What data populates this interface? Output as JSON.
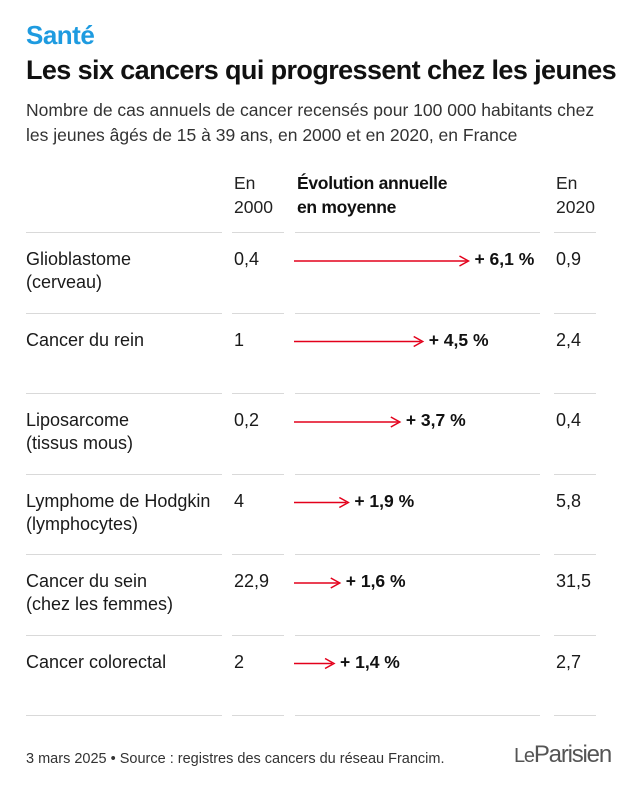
{
  "section": "Santé",
  "title": "Les six cancers qui progressent chez les jeunes",
  "subtitle": "Nombre de cas annuels de cancer recensés pour 100 000 habitants chez les jeunes âgés de 15 à 39 ans, en 2000 et en 2020, en France",
  "columns": {
    "y2000": [
      "En",
      "2000"
    ],
    "evolution": [
      "Évolution annuelle",
      "en moyenne"
    ],
    "y2020": [
      "En",
      "2020"
    ]
  },
  "footer": "3 mars 2025 • Source : registres des cancers du réseau Francim.",
  "logo": {
    "le": "Le",
    "name": "Parisien"
  },
  "colors": {
    "section": "#1e9be0",
    "arrow": "#e3001b"
  },
  "chart_data": {
    "type": "table",
    "rows": [
      {
        "label": [
          "Glioblastome",
          "(cerveau)"
        ],
        "v2000": "0,4",
        "evolution": 6.1,
        "evolution_label": "+ 6,1 %",
        "v2020": "0,9"
      },
      {
        "label": [
          "Cancer du rein"
        ],
        "v2000": "1",
        "evolution": 4.5,
        "evolution_label": "+ 4,5 %",
        "v2020": "2,4"
      },
      {
        "label": [
          "Liposarcome",
          "(tissus mous)"
        ],
        "v2000": "0,2",
        "evolution": 3.7,
        "evolution_label": "+ 3,7 %",
        "v2020": "0,4"
      },
      {
        "label": [
          "Lymphome de Hodgkin",
          "(lymphocytes)"
        ],
        "v2000": "4",
        "evolution": 1.9,
        "evolution_label": "+ 1,9 %",
        "v2020": "5,8"
      },
      {
        "label": [
          "Cancer du sein",
          "(chez les femmes)"
        ],
        "v2000": "22,9",
        "evolution": 1.6,
        "evolution_label": "+ 1,6 %",
        "v2020": "31,5"
      },
      {
        "label": [
          "Cancer colorectal"
        ],
        "v2000": "2",
        "evolution": 1.4,
        "evolution_label": "+ 1,4 %",
        "v2020": "2,7"
      }
    ]
  }
}
